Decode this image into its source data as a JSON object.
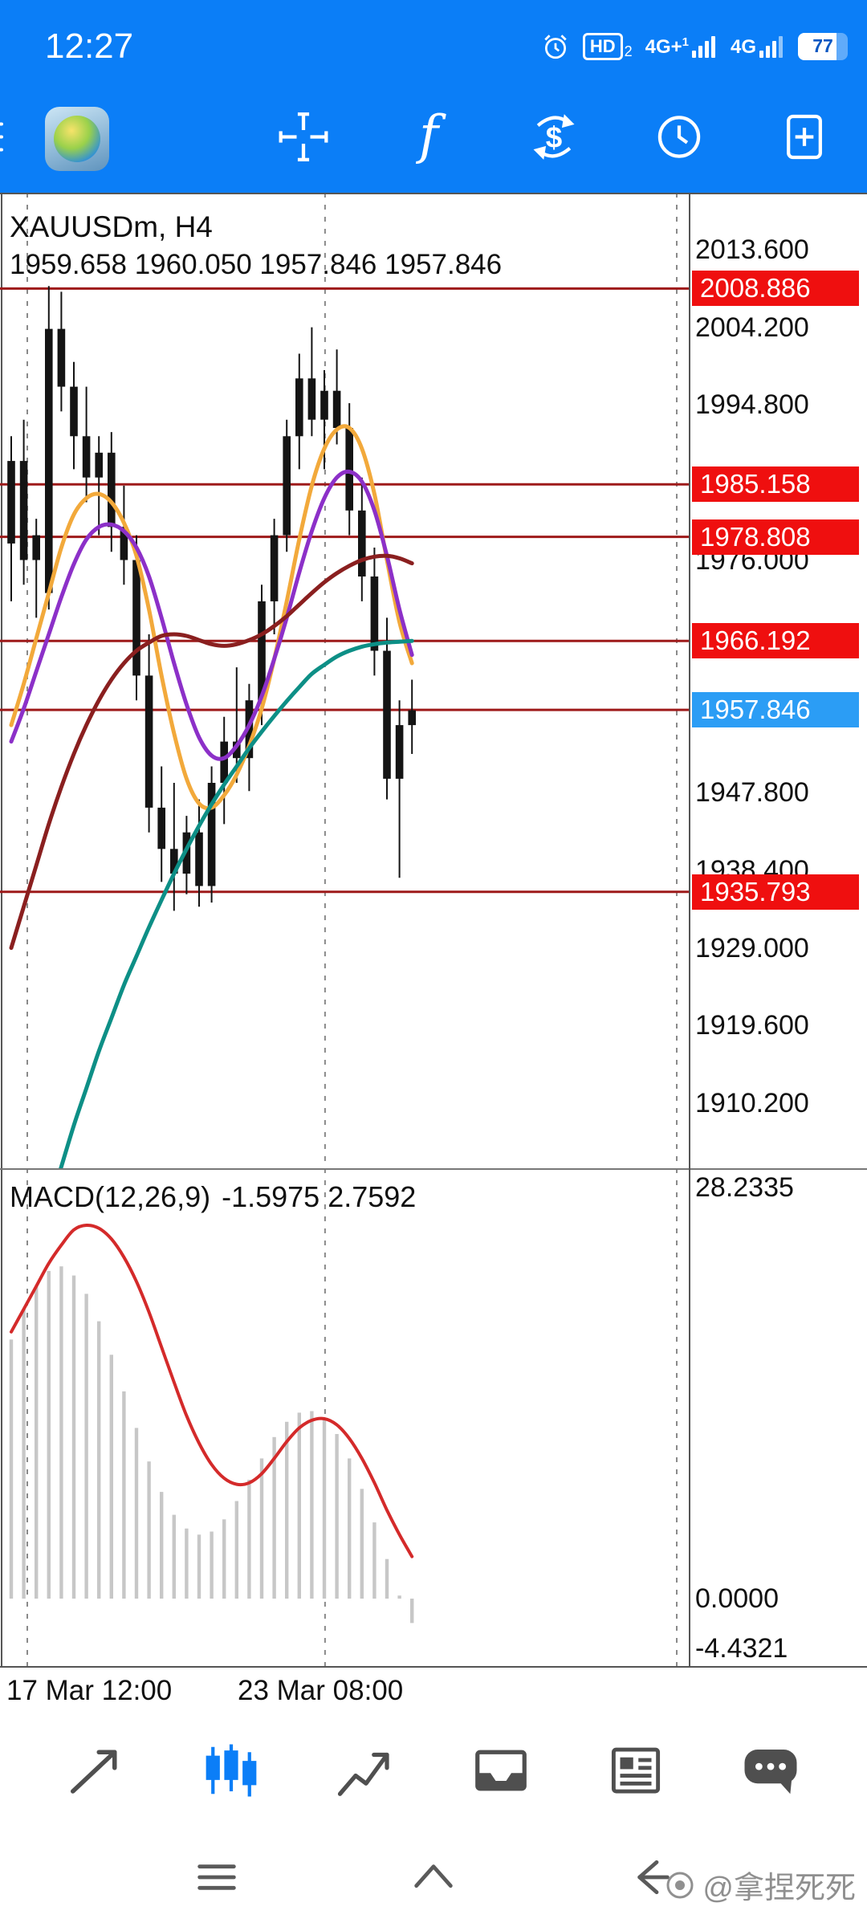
{
  "status_bar": {
    "time": "12:27",
    "hd_label": "HD",
    "hd_sub": "2",
    "sim1_label": "4G+",
    "sim1_sub": "1",
    "sim2_label": "4G",
    "battery_percent": "77"
  },
  "toolbar": {
    "icons": [
      "menu",
      "mt4-logo",
      "crosshair",
      "indicators",
      "trade",
      "periods",
      "new-order"
    ]
  },
  "chart": {
    "symbol_text": "XAUUSDm, H4",
    "ohlc_text": "1959.658 1960.050 1957.846 1957.846"
  },
  "chart_data": {
    "type": "candlestick",
    "symbol": "XAUUSDm",
    "timeframe": "H4",
    "x_labels": [
      "17 Mar 12:00",
      "23 Mar 08:00"
    ],
    "separator_indices": [
      1.28,
      25.06
    ],
    "y_ticks": [
      2013.6,
      2004.2,
      1994.8,
      1976.0,
      1947.8,
      1938.4,
      1929.0,
      1919.6,
      1910.2
    ],
    "levels": [
      2008.886,
      1985.158,
      1978.808,
      1966.192,
      1935.793
    ],
    "bid": 1957.846,
    "level_color": "#9e1a1a",
    "candle_color": "#141414",
    "candles": [
      [
        1978,
        1991,
        1971,
        1988
      ],
      [
        1988,
        1993,
        1973,
        1976
      ],
      [
        1976,
        1981,
        1969,
        1979
      ],
      [
        1972,
        2009.2,
        1970,
        2004
      ],
      [
        2004,
        2008.5,
        1994,
        1997
      ],
      [
        1997,
        2000,
        1987,
        1991
      ],
      [
        1991,
        1997,
        1983,
        1986
      ],
      [
        1986,
        1991,
        1979,
        1989
      ],
      [
        1989,
        1991.5,
        1977,
        1980
      ],
      [
        1980,
        1985,
        1973,
        1976
      ],
      [
        1976,
        1979,
        1959,
        1962
      ],
      [
        1962,
        1967,
        1943,
        1946
      ],
      [
        1946,
        1951,
        1937,
        1941
      ],
      [
        1941,
        1949,
        1933.5,
        1938
      ],
      [
        1938,
        1945,
        1935.5,
        1943
      ],
      [
        1943,
        1947,
        1934,
        1936.5
      ],
      [
        1936.5,
        1951,
        1934.5,
        1949
      ],
      [
        1949,
        1957,
        1944,
        1954
      ],
      [
        1954,
        1963,
        1949,
        1952
      ],
      [
        1952,
        1961,
        1948,
        1959
      ],
      [
        1959,
        1973,
        1956,
        1971
      ],
      [
        1971,
        1981,
        1967,
        1979
      ],
      [
        1979,
        1993,
        1977,
        1991
      ],
      [
        1991,
        2001,
        1987,
        1998
      ],
      [
        1998,
        2004.2,
        1991,
        1993
      ],
      [
        1993,
        1999,
        1987,
        1996.5
      ],
      [
        1996.5,
        2001.5,
        1990,
        1992
      ],
      [
        1992,
        1995,
        1979,
        1982
      ],
      [
        1982,
        1986,
        1971,
        1974
      ],
      [
        1974,
        1977.5,
        1962,
        1965
      ],
      [
        1965,
        1969,
        1947,
        1949.5
      ],
      [
        1949.5,
        1959,
        1937.5,
        1956
      ],
      [
        1956,
        1961.5,
        1952.5,
        1957.8
      ]
    ],
    "ma_series": [
      {
        "name": "ma-fast-orange",
        "color": "#f2a93b",
        "values": [
          1956,
          1961,
          1966.5,
          1972,
          1977.5,
          1981.5,
          1983.5,
          1984,
          1983,
          1980.5,
          1976.5,
          1970,
          1962,
          1955,
          1949.5,
          1946.5,
          1946,
          1947.5,
          1950,
          1953.5,
          1958,
          1964,
          1971,
          1978.5,
          1985,
          1989.5,
          1991.8,
          1992,
          1989.5,
          1984,
          1976,
          1968.5,
          1963.5
        ]
      },
      {
        "name": "ma-mid-purple",
        "color": "#8c30c8",
        "values": [
          1954,
          1958,
          1962.5,
          1967,
          1971.5,
          1975.5,
          1978.5,
          1980,
          1980.3,
          1979.5,
          1977.5,
          1974,
          1969,
          1963.5,
          1958.5,
          1954.5,
          1952.3,
          1952,
          1953.5,
          1956,
          1959.5,
          1964,
          1969,
          1974.5,
          1979.5,
          1983.5,
          1986,
          1986.7,
          1985.5,
          1982,
          1976.5,
          1970,
          1964.5
        ]
      },
      {
        "name": "ma-slow-maroon",
        "color": "#8a1f1f",
        "values": [
          1929,
          1934,
          1939,
          1944,
          1948.5,
          1952.5,
          1956,
          1959,
          1961.5,
          1963.5,
          1965,
          1966,
          1966.8,
          1967,
          1966.8,
          1966.3,
          1965.8,
          1965.6,
          1965.8,
          1966.3,
          1967,
          1968,
          1969.2,
          1970.6,
          1972,
          1973.3,
          1974.4,
          1975.3,
          1976,
          1976.4,
          1976.5,
          1976.2,
          1975.6
        ]
      },
      {
        "name": "ma-long-teal",
        "color": "#0d8f86",
        "values": [
          1880,
          1886,
          1892,
          1897.5,
          1902.5,
          1907.5,
          1912,
          1916.5,
          1920.5,
          1924.5,
          1928,
          1931.5,
          1934.8,
          1938,
          1941,
          1943.8,
          1946.4,
          1948.8,
          1951,
          1953.2,
          1955.2,
          1957.1,
          1958.9,
          1960.6,
          1962.2,
          1963.3,
          1964.3,
          1965,
          1965.5,
          1965.8,
          1966,
          1966.1,
          1966.2
        ]
      }
    ],
    "macd": {
      "label": "MACD(12,26,9)",
      "values": "-1.5975 2.7592",
      "y_ticks": [
        28.2335,
        0,
        -4.4321
      ],
      "bar_color": "#c7c7c7",
      "signal_color": "#d42a2a",
      "histogram": [
        17,
        19,
        20.5,
        21.5,
        21.8,
        21.2,
        20,
        18.2,
        16,
        13.6,
        11.2,
        9,
        7,
        5.5,
        4.6,
        4.2,
        4.4,
        5.2,
        6.4,
        7.8,
        9.2,
        10.6,
        11.6,
        12.2,
        12.3,
        11.8,
        10.8,
        9.2,
        7.2,
        5,
        2.6,
        0.2,
        -1.6
      ],
      "signal": [
        17.5,
        19,
        20.5,
        22,
        23.2,
        24.2,
        24.5,
        24.3,
        23.6,
        22.4,
        20.8,
        18.8,
        16.5,
        14.2,
        12,
        10.2,
        8.8,
        7.9,
        7.5,
        7.6,
        8.2,
        9.2,
        10.3,
        11.2,
        11.7,
        11.8,
        11.4,
        10.5,
        9.2,
        7.6,
        5.8,
        4.2,
        2.76
      ]
    }
  },
  "bottom_toolbar": {
    "items": [
      "trend-tool",
      "chart-type-candles",
      "line-studies",
      "tray",
      "news",
      "chat"
    ],
    "active": "chart-type-candles"
  },
  "nav": {
    "items": [
      "menu",
      "home",
      "back"
    ]
  },
  "watermark": "@拿捏死死"
}
